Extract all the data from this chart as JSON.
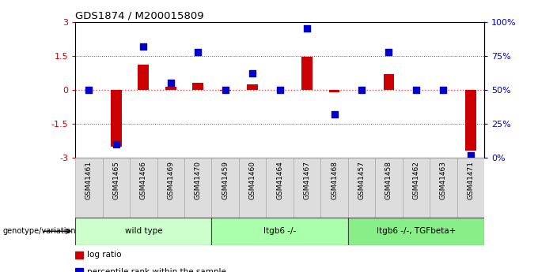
{
  "title": "GDS1874 / M200015809",
  "samples": [
    "GSM41461",
    "GSM41465",
    "GSM41466",
    "GSM41469",
    "GSM41470",
    "GSM41459",
    "GSM41460",
    "GSM41464",
    "GSM41467",
    "GSM41468",
    "GSM41457",
    "GSM41458",
    "GSM41462",
    "GSM41463",
    "GSM41471"
  ],
  "log_ratio": [
    0.0,
    -2.5,
    1.1,
    0.15,
    0.3,
    -0.05,
    0.25,
    0.0,
    1.45,
    -0.1,
    0.0,
    0.7,
    0.0,
    0.0,
    -2.7
  ],
  "percentile_rank": [
    50,
    10,
    82,
    55,
    78,
    50,
    62,
    50,
    95,
    32,
    50,
    78,
    50,
    50,
    2
  ],
  "groups": [
    {
      "label": "wild type",
      "start": 0,
      "end": 5
    },
    {
      "label": "Itgb6 -/-",
      "start": 5,
      "end": 10
    },
    {
      "label": "Itgb6 -/-, TGFbeta+",
      "start": 10,
      "end": 15
    }
  ],
  "group_colors": [
    "#ccffcc",
    "#aaffaa",
    "#88ee88"
  ],
  "ylim_left": [
    -3,
    3
  ],
  "ylim_right": [
    0,
    100
  ],
  "yticks_left": [
    -3,
    -1.5,
    0,
    1.5,
    3
  ],
  "ytick_labels_left": [
    "-3",
    "-1.5",
    "0",
    "1.5",
    "3"
  ],
  "yticks_right": [
    0,
    25,
    50,
    75,
    100
  ],
  "ytick_labels_right": [
    "0%",
    "25%",
    "50%",
    "75%",
    "100%"
  ],
  "bar_color": "#cc0000",
  "dot_color": "#0000cc",
  "hline_color": "#ff4444",
  "dotted_line_color": "#555555",
  "dotted_lines": [
    -1.5,
    1.5
  ],
  "background_color": "#ffffff",
  "legend_items": [
    {
      "label": "log ratio",
      "color": "#cc0000"
    },
    {
      "label": "percentile rank within the sample",
      "color": "#0000cc"
    }
  ],
  "genotype_label": "genotype/variation",
  "bar_width": 0.4,
  "dot_size": 40
}
